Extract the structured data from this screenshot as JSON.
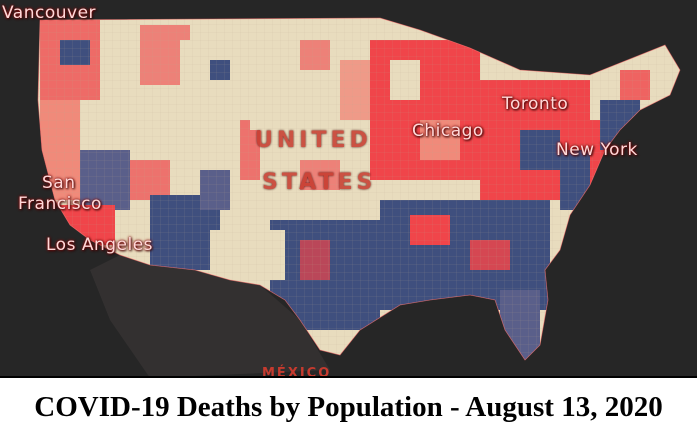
{
  "caption": "COVID-19 Deaths by Population - August 13, 2020",
  "map": {
    "country_labels": {
      "usa_line1": "UNITED",
      "usa_line2": "STATES",
      "mexico": "MÉXICO"
    },
    "city_labels": {
      "vancouver": "Vancouver",
      "san_francisco_1": "San",
      "san_francisco_2": "Francisco",
      "los_angeles": "Los Angeles",
      "chicago": "Chicago",
      "toronto": "Toronto",
      "new_york": "New York"
    },
    "colors": {
      "basemap": "#2b2b2b",
      "low": "#e8dcbe",
      "medium_low": "#f08a7a",
      "medium": "#f0454a",
      "high": "#3f4f7e",
      "highest": "#5a5f8a"
    }
  }
}
